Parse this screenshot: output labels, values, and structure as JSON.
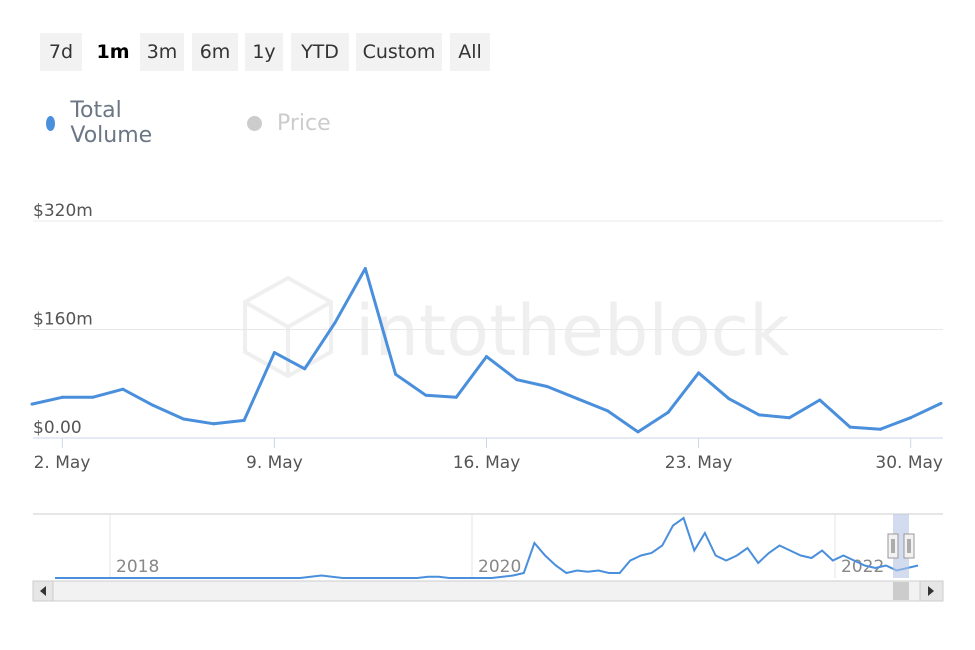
{
  "range_buttons": [
    {
      "label": "7d",
      "active": false
    },
    {
      "label": "1m",
      "active": true
    },
    {
      "label": "3m",
      "active": false
    },
    {
      "label": "6m",
      "active": false
    },
    {
      "label": "1y",
      "active": false
    },
    {
      "label": "YTD",
      "active": false
    },
    {
      "label": "Custom",
      "active": false
    },
    {
      "label": "All",
      "active": false
    }
  ],
  "legend": [
    {
      "label": "Total Volume",
      "color": "#4a8fdc",
      "enabled": true
    },
    {
      "label": "Price",
      "color": "#cccccc",
      "enabled": false
    }
  ],
  "watermark": "intotheblock",
  "colors": {
    "series": "#4a8fdc",
    "grid": "#e8e8e8",
    "axis": "#ccd6eb",
    "navigator_mask": "#b6c4e4"
  },
  "chart_data": {
    "type": "line",
    "series": [
      {
        "name": "Total Volume",
        "x": [
          "1 May",
          "2 May",
          "3 May",
          "4 May",
          "5 May",
          "6 May",
          "7 May",
          "8 May",
          "9 May",
          "10 May",
          "11 May",
          "12 May",
          "13 May",
          "14 May",
          "15 May",
          "16 May",
          "17 May",
          "18 May",
          "19 May",
          "20 May",
          "21 May",
          "22 May",
          "23 May",
          "24 May",
          "25 May",
          "26 May",
          "27 May",
          "28 May",
          "29 May",
          "30 May",
          "31 May"
        ],
        "values": [
          50,
          60,
          60,
          72,
          48,
          28,
          21,
          26,
          126,
          102,
          170,
          250,
          94,
          63,
          60,
          120,
          86,
          76,
          58,
          40,
          9,
          38,
          96,
          58,
          34,
          30,
          56,
          16,
          13,
          30,
          51
        ]
      }
    ],
    "x_ticks": [
      "2. May",
      "9. May",
      "16. May",
      "23. May",
      "30. May"
    ],
    "y_ticks": [
      "$0.00",
      "$160m",
      "$320m"
    ],
    "ylim": [
      0,
      320
    ],
    "grid": true,
    "legend_position": "top-left",
    "navigator": {
      "year_labels": [
        "2018",
        "2020",
        "2022"
      ],
      "values": [
        0,
        0,
        0,
        0,
        0,
        0,
        0,
        0,
        0,
        0,
        0,
        0,
        0,
        0,
        0,
        0,
        0,
        0,
        0,
        0,
        0,
        0,
        0,
        0,
        1,
        2,
        1,
        0,
        0,
        0,
        0,
        0,
        0,
        0,
        0,
        1,
        1,
        0,
        0,
        0,
        0,
        0,
        1,
        2,
        4,
        28,
        18,
        10,
        4,
        6,
        5,
        6,
        4,
        4,
        14,
        18,
        20,
        26,
        42,
        48,
        22,
        36,
        18,
        14,
        18,
        24,
        12,
        20,
        26,
        22,
        18,
        16,
        22,
        14,
        18,
        14,
        10,
        8,
        10,
        6,
        8,
        10
      ]
    }
  }
}
